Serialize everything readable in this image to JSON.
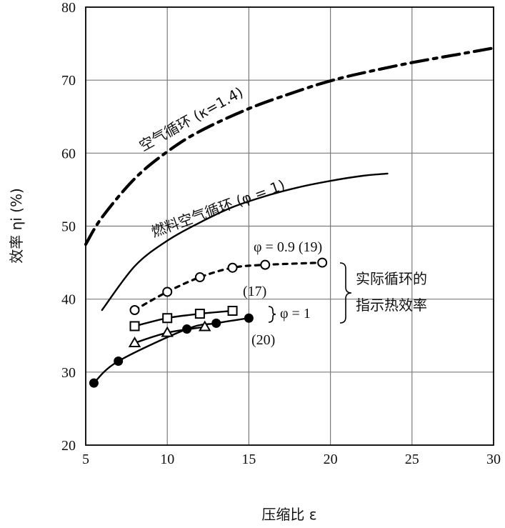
{
  "chart_data": {
    "type": "line",
    "xlabel": "压缩比 ε",
    "ylabel": "效率 ηi (%)",
    "xlim": [
      5,
      30
    ],
    "ylim": [
      20,
      80
    ],
    "xticks": [
      "5",
      "10",
      "15",
      "20",
      "25",
      "30"
    ],
    "yticks": [
      "20",
      "30",
      "40",
      "50",
      "60",
      "70",
      "80"
    ],
    "grid": true,
    "series": [
      {
        "name": "空气循环 (κ=1.4)",
        "style": "dash-dot",
        "marker": "none",
        "x": [
          5,
          6,
          8,
          10,
          12,
          15,
          18,
          20,
          22,
          25,
          28,
          30
        ],
        "y": [
          47.5,
          51.2,
          56.5,
          60.2,
          63.0,
          66.1,
          68.5,
          69.9,
          71.0,
          72.4,
          73.6,
          74.4
        ]
      },
      {
        "name": "燃料空气循环 (φ = 1)",
        "style": "solid",
        "marker": "none",
        "x": [
          6,
          8,
          10,
          12,
          14,
          16,
          18,
          20,
          22,
          23.5
        ],
        "y": [
          38.5,
          44.5,
          48.0,
          50.5,
          52.6,
          54.1,
          55.3,
          56.2,
          56.9,
          57.2
        ]
      },
      {
        "name": "φ = 0.9 (19)",
        "style": "dotted",
        "marker": "open-circle",
        "x": [
          8,
          10,
          12,
          14,
          16,
          19.5
        ],
        "y": [
          38.5,
          41.0,
          43.0,
          44.3,
          44.7,
          45.0
        ]
      },
      {
        "name": "(17)",
        "style": "solid",
        "marker": "open-square",
        "x": [
          8,
          10,
          12,
          14
        ],
        "y": [
          36.3,
          37.4,
          38.0,
          38.4
        ]
      },
      {
        "name": "(20)",
        "style": "solid",
        "marker": "open-triangle",
        "x": [
          8,
          10,
          12.3
        ],
        "y": [
          34.0,
          35.4,
          36.2
        ]
      },
      {
        "name": "",
        "style": "solid",
        "marker": "filled-circle",
        "x": [
          5.5,
          7,
          11.2,
          13,
          15
        ],
        "y": [
          28.5,
          31.5,
          35.9,
          36.7,
          37.4
        ]
      }
    ],
    "annotations": {
      "air_cycle": "空气循环 (κ=1.4)",
      "fuel_air_cycle": "燃料空气循环 (φ = 1)",
      "phi09": "φ = 0.9 (19)",
      "ref17": "(17)",
      "phi1": "φ = 1",
      "ref20": "(20)",
      "brace_line1": "实际循环的",
      "brace_line2": "指示热效率"
    }
  }
}
